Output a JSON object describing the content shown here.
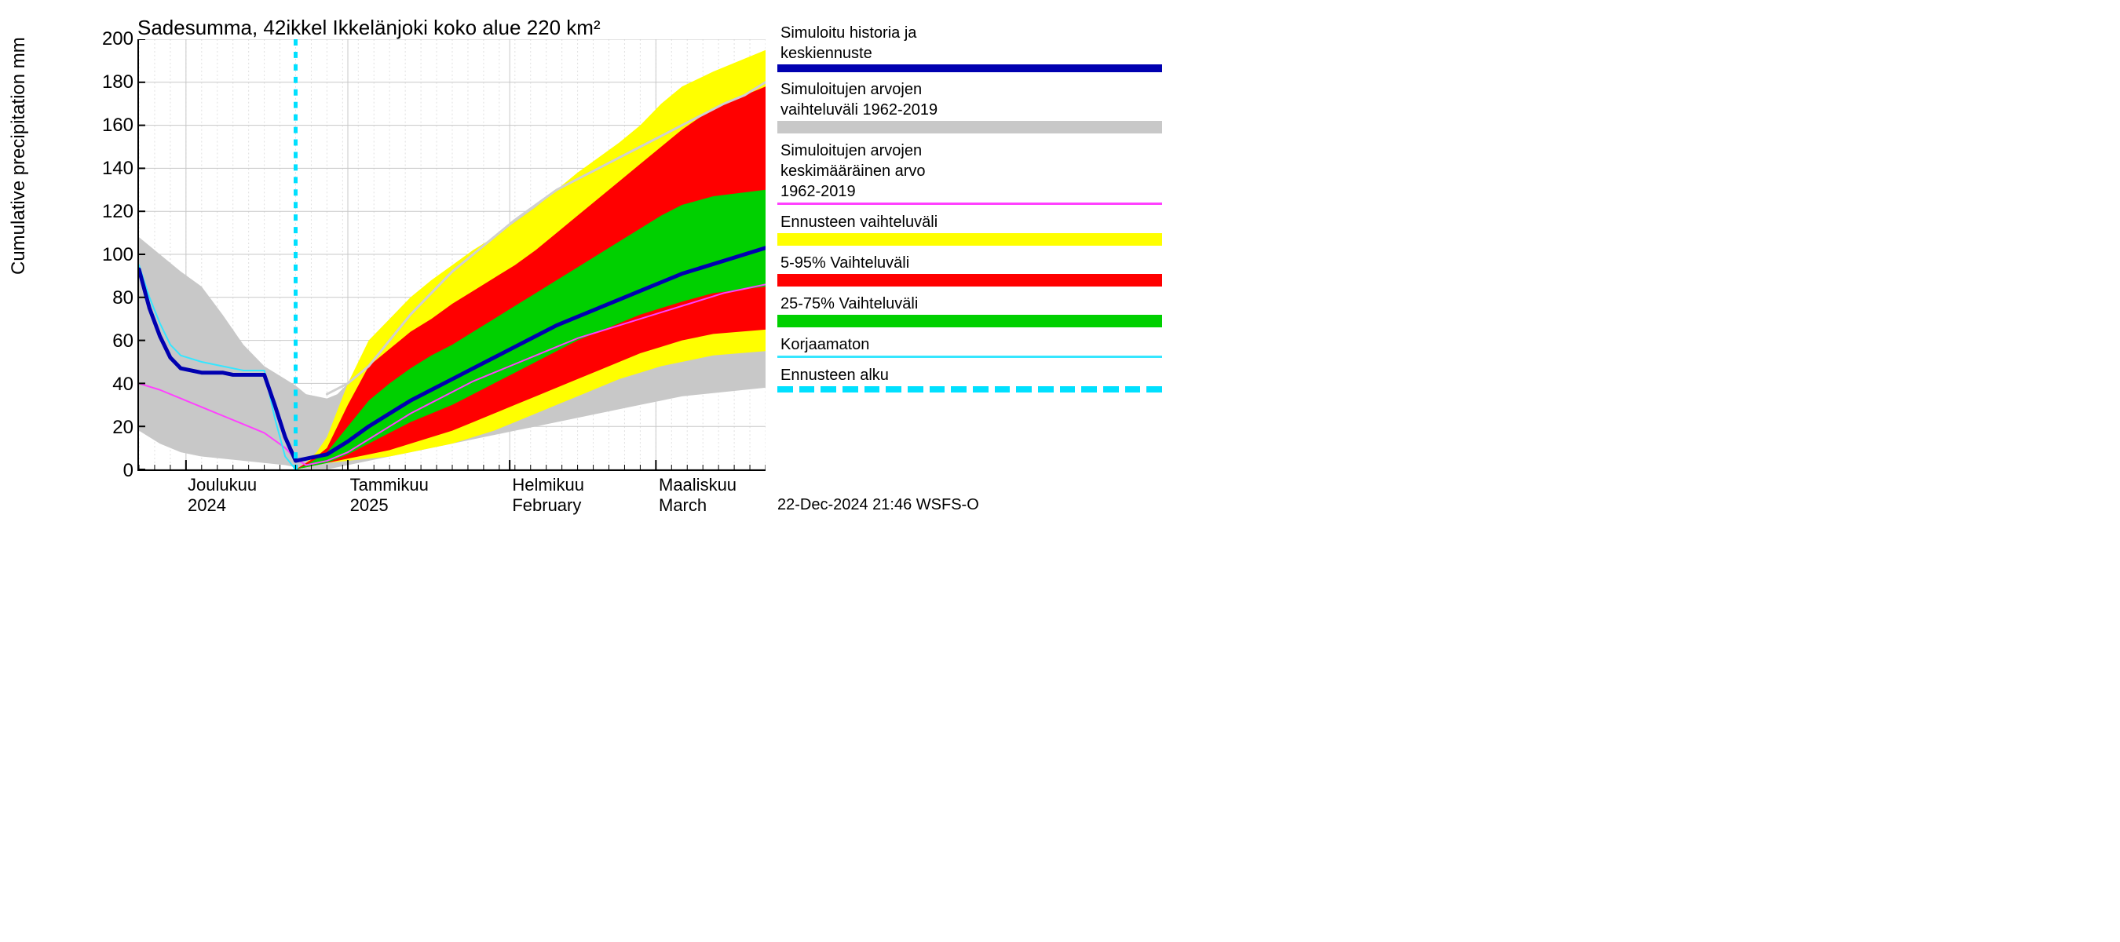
{
  "chart": {
    "type": "line-band-forecast",
    "title": "Sadesumma, 42ikkel Ikkelänjoki koko alue 220 km²",
    "y_axis_label": "Cumulative precipitation   mm",
    "footer": "22-Dec-2024 21:46 WSFS-O",
    "background_color": "#ffffff",
    "plot_bg": "#ffffff",
    "axis_color": "#000000",
    "xlim_days": [
      0,
      120
    ],
    "ylim": [
      0,
      200
    ],
    "ytick_step": 20,
    "y_ticks": [
      0,
      20,
      40,
      60,
      80,
      100,
      120,
      140,
      160,
      180,
      200
    ],
    "major_grid_color": "#c8c8c8",
    "minor_grid_color": "#e0e0e0",
    "minor_grid_dash": "2,3",
    "x_months": [
      {
        "label": "Joulukuu",
        "sublabel": "2024",
        "pos_days": 9
      },
      {
        "label": "Tammikuu",
        "sublabel": "2025",
        "pos_days": 40
      },
      {
        "label": "Helmikuu",
        "sublabel": "February",
        "pos_days": 71
      },
      {
        "label": "Maaliskuu",
        "sublabel": "March",
        "pos_days": 99
      }
    ],
    "forecast_start_day": 30,
    "forecast_start_line": {
      "color": "#00e0ff",
      "width": 5,
      "dash": "8,8"
    },
    "bands": {
      "historical_range": {
        "color": "#c8c8c8",
        "upper": [
          108,
          100,
          92,
          85,
          72,
          58,
          48,
          42,
          39,
          35,
          33,
          35,
          40,
          48,
          60,
          72,
          82,
          92,
          100,
          108,
          116,
          123,
          130,
          135,
          140,
          145,
          150,
          155,
          160,
          165,
          170,
          174,
          180
        ],
        "lower": [
          18,
          12,
          8,
          6,
          5,
          4,
          3,
          2,
          1,
          0,
          0,
          1,
          2,
          4,
          6,
          8,
          10,
          12,
          14,
          16,
          18,
          20,
          22,
          24,
          26,
          28,
          30,
          32,
          34,
          35,
          36,
          37,
          38
        ],
        "x": [
          0,
          4,
          8,
          12,
          16,
          20,
          24,
          28,
          30,
          32,
          36,
          38,
          40,
          44,
          48,
          52,
          56,
          60,
          64,
          68,
          72,
          76,
          80,
          84,
          88,
          92,
          96,
          100,
          104,
          108,
          112,
          116,
          120
        ]
      },
      "forecast_range": {
        "color": "#ffff00",
        "upper": [
          0,
          3,
          8,
          15,
          40,
          60,
          70,
          80,
          88,
          95,
          102,
          108,
          115,
          122,
          130,
          138,
          145,
          152,
          160,
          170,
          178,
          185,
          195
        ],
        "lower": [
          0,
          1,
          2,
          3,
          4,
          5,
          6,
          8,
          10,
          12,
          15,
          18,
          22,
          26,
          30,
          34,
          38,
          42,
          45,
          48,
          50,
          53,
          55
        ],
        "x": [
          30,
          32,
          34,
          36,
          40,
          44,
          48,
          52,
          56,
          60,
          64,
          68,
          72,
          76,
          80,
          84,
          88,
          92,
          96,
          100,
          104,
          110,
          120
        ]
      },
      "p5_95": {
        "color": "#ff0000",
        "upper": [
          0,
          3,
          6,
          10,
          30,
          48,
          56,
          64,
          70,
          77,
          83,
          89,
          95,
          102,
          110,
          118,
          126,
          134,
          142,
          150,
          158,
          168,
          178
        ],
        "lower": [
          0,
          1,
          2,
          3,
          5,
          7,
          9,
          12,
          15,
          18,
          22,
          26,
          30,
          34,
          38,
          42,
          46,
          50,
          54,
          57,
          60,
          63,
          65
        ],
        "x": [
          30,
          32,
          34,
          36,
          40,
          44,
          48,
          52,
          56,
          60,
          64,
          68,
          72,
          76,
          80,
          84,
          88,
          92,
          96,
          100,
          104,
          110,
          120
        ]
      },
      "p25_75": {
        "color": "#00d000",
        "upper": [
          0,
          2,
          5,
          8,
          20,
          32,
          40,
          47,
          53,
          58,
          64,
          70,
          76,
          82,
          88,
          94,
          100,
          106,
          112,
          118,
          123,
          127,
          130
        ],
        "lower": [
          0,
          1,
          2,
          3,
          7,
          12,
          17,
          22,
          26,
          30,
          35,
          40,
          45,
          50,
          55,
          60,
          64,
          68,
          72,
          75,
          78,
          82,
          85
        ],
        "x": [
          30,
          32,
          34,
          36,
          40,
          44,
          48,
          52,
          56,
          60,
          64,
          68,
          72,
          76,
          80,
          84,
          88,
          92,
          96,
          100,
          104,
          110,
          120
        ]
      }
    },
    "lines": {
      "median": {
        "color": "#0000b0",
        "width": 5,
        "dash": null,
        "x": [
          0,
          2,
          4,
          6,
          8,
          12,
          16,
          18,
          20,
          24,
          26,
          28,
          30,
          32,
          34,
          36,
          40,
          44,
          48,
          52,
          56,
          60,
          64,
          68,
          72,
          76,
          80,
          84,
          88,
          92,
          96,
          100,
          104,
          108,
          112,
          116,
          120
        ],
        "y": [
          93,
          75,
          62,
          52,
          47,
          45,
          45,
          44,
          44,
          44,
          30,
          15,
          4,
          5,
          6,
          7,
          13,
          20,
          26,
          32,
          37,
          42,
          47,
          52,
          57,
          62,
          67,
          71,
          75,
          79,
          83,
          87,
          91,
          94,
          97,
          100,
          103
        ]
      },
      "uncorrected": {
        "color": "#35e6ff",
        "width": 2,
        "dash": null,
        "x": [
          0,
          2,
          4,
          6,
          8,
          12,
          16,
          20,
          24,
          26,
          28,
          30
        ],
        "y": [
          95,
          80,
          68,
          58,
          53,
          50,
          48,
          46,
          46,
          24,
          6,
          0
        ]
      },
      "historical_mean_pre": {
        "color": "#ff40ff",
        "width": 2,
        "dash": null,
        "x": [
          0,
          4,
          8,
          12,
          16,
          20,
          24,
          28,
          30,
          32
        ],
        "y": [
          40,
          37,
          33,
          29,
          25,
          21,
          17,
          10,
          5,
          2
        ]
      },
      "historical_mean_post": {
        "color": "#ff40ff",
        "width": 2,
        "dash": null,
        "x": [
          32,
          36,
          40,
          44,
          48,
          52,
          56,
          60,
          64,
          68,
          72,
          76,
          80,
          84,
          88,
          92,
          96,
          100,
          104,
          108,
          112,
          116,
          120
        ],
        "y": [
          2,
          4,
          8,
          14,
          20,
          26,
          31,
          36,
          41,
          45,
          49,
          53,
          57,
          61,
          64,
          67,
          70,
          73,
          76,
          79,
          82,
          84,
          86
        ]
      },
      "historical_upper_line": {
        "color": "#d0d0d0",
        "width": 3,
        "dash": null,
        "x": [
          36,
          40,
          44,
          48,
          52,
          56,
          60,
          64,
          68,
          72,
          76,
          80,
          84,
          88,
          92,
          96,
          100,
          104,
          108,
          112,
          116,
          120
        ],
        "y": [
          35,
          40,
          48,
          60,
          72,
          82,
          92,
          100,
          108,
          116,
          123,
          130,
          135,
          140,
          145,
          150,
          155,
          160,
          165,
          170,
          174,
          180
        ]
      }
    },
    "legend": [
      {
        "kind": "line",
        "label_lines": [
          "Simuloitu historia ja",
          "keskiennuste"
        ],
        "color": "#0000b0",
        "thickness": 10
      },
      {
        "kind": "swatch",
        "label_lines": [
          "Simuloitujen arvojen",
          "vaihteluväli 1962-2019"
        ],
        "color": "#c8c8c8"
      },
      {
        "kind": "line",
        "label_lines": [
          "Simuloitujen arvojen",
          "keskimääräinen arvo",
          "  1962-2019"
        ],
        "color": "#ff40ff",
        "thickness": 3
      },
      {
        "kind": "swatch",
        "label_lines": [
          "Ennusteen vaihteluväli"
        ],
        "color": "#ffff00"
      },
      {
        "kind": "swatch",
        "label_lines": [
          "5-95% Vaihteluväli"
        ],
        "color": "#ff0000"
      },
      {
        "kind": "swatch",
        "label_lines": [
          "25-75% Vaihteluväli"
        ],
        "color": "#00d000"
      },
      {
        "kind": "line",
        "label_lines": [
          "Korjaamaton"
        ],
        "color": "#35e6ff",
        "thickness": 3
      },
      {
        "kind": "dash",
        "label_lines": [
          "Ennusteen alku"
        ],
        "color": "#00e0ff",
        "thickness": 8
      }
    ]
  }
}
